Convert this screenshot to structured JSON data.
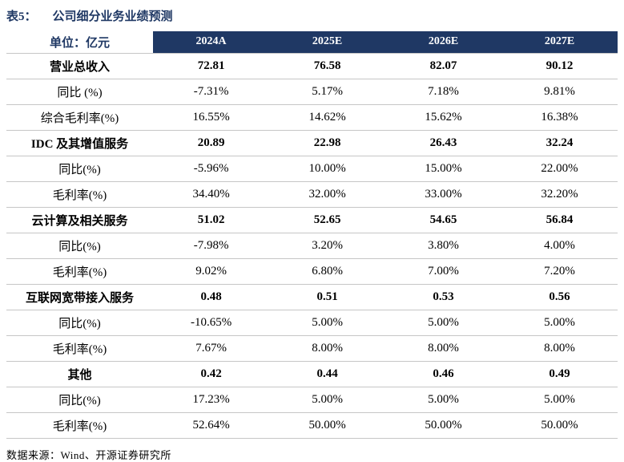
{
  "title": {
    "prefix": "表5：",
    "text": "公司细分业务业绩预测"
  },
  "table": {
    "unit_header": "单位：亿元",
    "columns": [
      "2024A",
      "2025E",
      "2026E",
      "2027E"
    ],
    "rows": [
      {
        "label": "营业总收入",
        "bold": true,
        "values": [
          "72.81",
          "76.58",
          "82.07",
          "90.12"
        ]
      },
      {
        "label": "同比 (%)",
        "bold": false,
        "values": [
          "-7.31%",
          "5.17%",
          "7.18%",
          "9.81%"
        ]
      },
      {
        "label": "综合毛利率(%)",
        "bold": false,
        "values": [
          "16.55%",
          "14.62%",
          "15.62%",
          "16.38%"
        ]
      },
      {
        "label": "IDC 及其增值服务",
        "bold": true,
        "values": [
          "20.89",
          "22.98",
          "26.43",
          "32.24"
        ]
      },
      {
        "label": "同比(%)",
        "bold": false,
        "values": [
          "-5.96%",
          "10.00%",
          "15.00%",
          "22.00%"
        ]
      },
      {
        "label": "毛利率(%)",
        "bold": false,
        "values": [
          "34.40%",
          "32.00%",
          "33.00%",
          "32.20%"
        ]
      },
      {
        "label": "云计算及相关服务",
        "bold": true,
        "values": [
          "51.02",
          "52.65",
          "54.65",
          "56.84"
        ]
      },
      {
        "label": "同比(%)",
        "bold": false,
        "values": [
          "-7.98%",
          "3.20%",
          "3.80%",
          "4.00%"
        ]
      },
      {
        "label": "毛利率(%)",
        "bold": false,
        "values": [
          "9.02%",
          "6.80%",
          "7.00%",
          "7.20%"
        ]
      },
      {
        "label": "互联网宽带接入服务",
        "bold": true,
        "values": [
          "0.48",
          "0.51",
          "0.53",
          "0.56"
        ]
      },
      {
        "label": "同比(%)",
        "bold": false,
        "values": [
          "-10.65%",
          "5.00%",
          "5.00%",
          "5.00%"
        ]
      },
      {
        "label": "毛利率(%)",
        "bold": false,
        "values": [
          "7.67%",
          "8.00%",
          "8.00%",
          "8.00%"
        ]
      },
      {
        "label": "其他",
        "bold": true,
        "values": [
          "0.42",
          "0.44",
          "0.46",
          "0.49"
        ]
      },
      {
        "label": "同比(%)",
        "bold": false,
        "values": [
          "17.23%",
          "5.00%",
          "5.00%",
          "5.00%"
        ]
      },
      {
        "label": "毛利率(%)",
        "bold": false,
        "values": [
          "52.64%",
          "50.00%",
          "50.00%",
          "50.00%"
        ]
      }
    ]
  },
  "source": "数据来源：Wind、开源证券研究所",
  "colors": {
    "navy": "#1F3864",
    "border": "#C6C6C6"
  }
}
